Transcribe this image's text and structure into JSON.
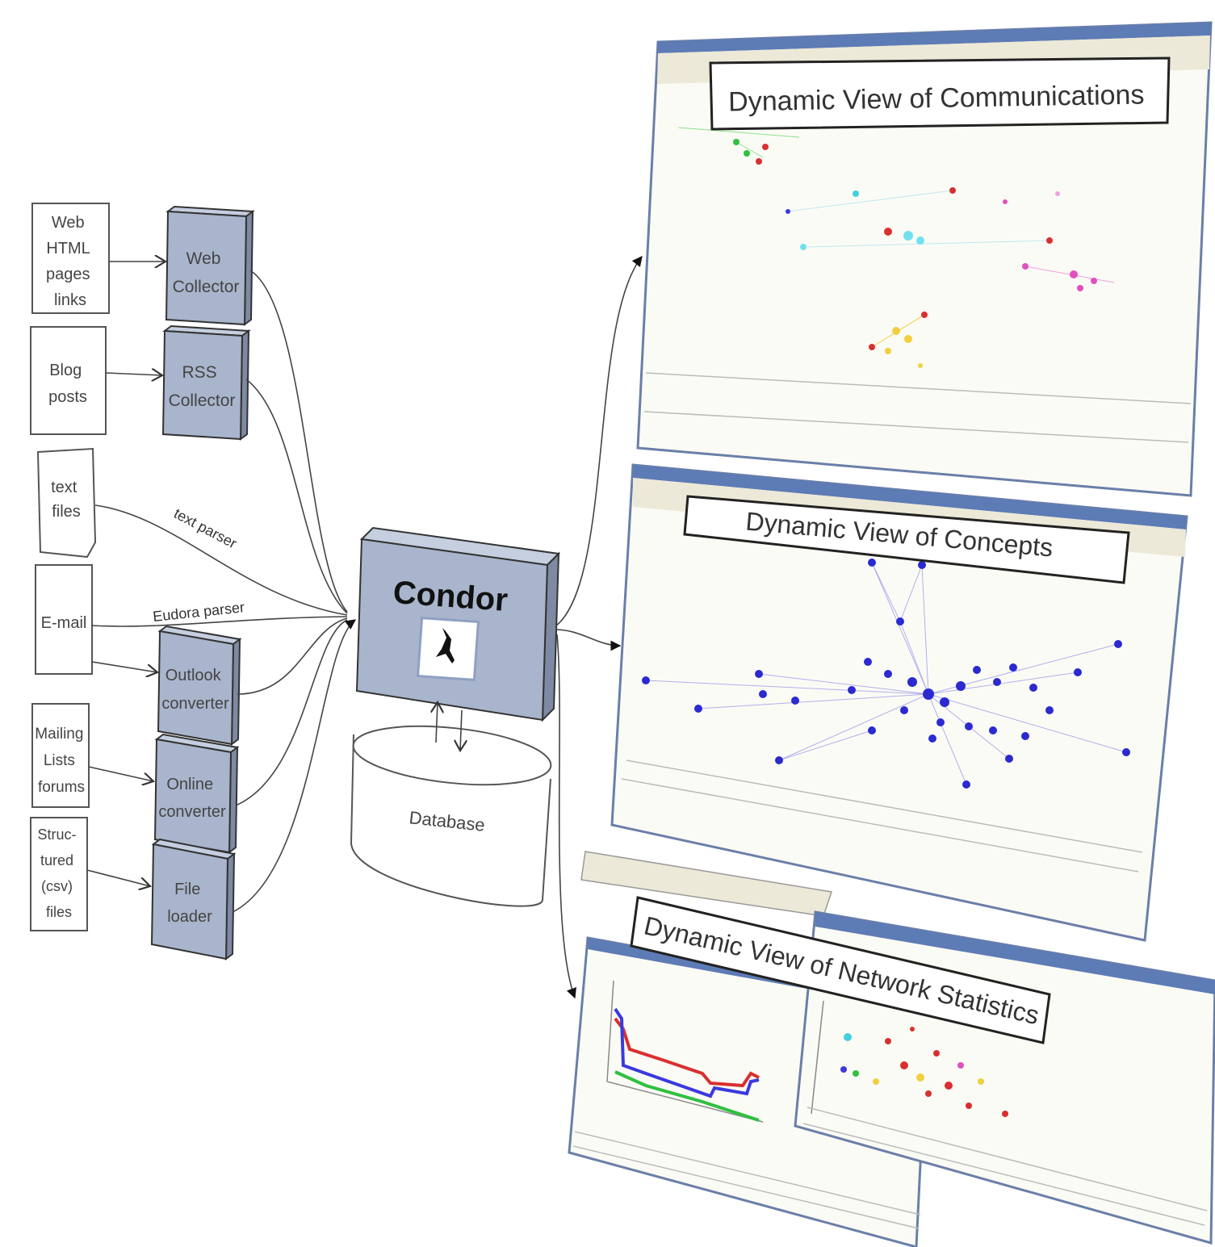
{
  "sources": [
    {
      "id": "web",
      "label": "Web HTML pages links"
    },
    {
      "id": "blog",
      "label": "Blog posts"
    },
    {
      "id": "text",
      "label": "text files"
    },
    {
      "id": "email",
      "label": "E-mail"
    },
    {
      "id": "mail",
      "label": "Mailing Lists forums"
    },
    {
      "id": "struct",
      "label": "Struc- tured (csv) files"
    }
  ],
  "collectors": [
    {
      "id": "webcol",
      "label": "Web Collector"
    },
    {
      "id": "rss",
      "label": "RSS Collector"
    },
    {
      "id": "outlook",
      "label": "Outlook converter"
    },
    {
      "id": "online",
      "label": "Online converter"
    },
    {
      "id": "file",
      "label": "File loader"
    }
  ],
  "parsers": {
    "text": "text parser",
    "eudora": "Eudora parser"
  },
  "core": {
    "label": "Condor"
  },
  "database": {
    "label": "Database"
  },
  "views": {
    "communications": "Dynamic View of Communications",
    "concepts": "Dynamic View of Concepts",
    "statistics": "Dynamic View of Network Statistics"
  },
  "colors": {
    "box_fill": "#a9b5cc",
    "window_border": "#6a7fa8",
    "concept_nodes": "#2a2ad0",
    "series_red": "#d83030",
    "series_blue": "#3a3ae0",
    "series_green": "#30c040"
  },
  "icons": [
    "condor-bird-icon",
    "arrow-icon"
  ]
}
